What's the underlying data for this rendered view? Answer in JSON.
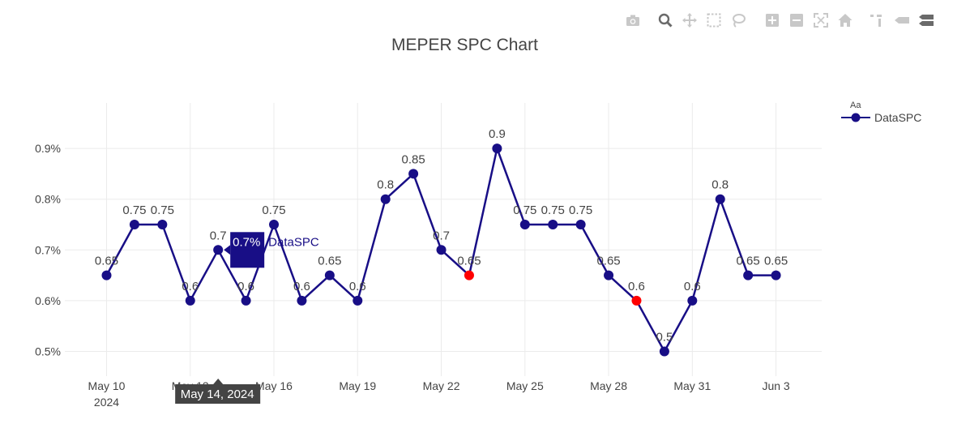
{
  "chart_data": {
    "type": "line",
    "title": "MEPER SPC Chart",
    "xlabel": "",
    "ylabel": "",
    "x_tick_labels": [
      "May 10",
      "May 13",
      "May 16",
      "May 19",
      "May 22",
      "May 25",
      "May 28",
      "May 31",
      "Jun 3"
    ],
    "x_tick_sublabel": "2024",
    "y_tick_labels": [
      "0.5%",
      "0.6%",
      "0.7%",
      "0.8%",
      "0.9%"
    ],
    "ylim": [
      0.45,
      0.99
    ],
    "grid": true,
    "legend": {
      "title": "Aa",
      "placement": "top-right"
    },
    "series": [
      {
        "name": "DataSPC",
        "color": "#180e86",
        "x": [
          "2024-05-10",
          "2024-05-11",
          "2024-05-12",
          "2024-05-13",
          "2024-05-14",
          "2024-05-15",
          "2024-05-16",
          "2024-05-17",
          "2024-05-18",
          "2024-05-19",
          "2024-05-20",
          "2024-05-21",
          "2024-05-22",
          "2024-05-23",
          "2024-05-24",
          "2024-05-25",
          "2024-05-26",
          "2024-05-27",
          "2024-05-28",
          "2024-05-29",
          "2024-05-30",
          "2024-05-31",
          "2024-06-01",
          "2024-06-02",
          "2024-06-03"
        ],
        "values": [
          0.65,
          0.75,
          0.75,
          0.6,
          0.7,
          0.6,
          0.75,
          0.6,
          0.65,
          0.6,
          0.8,
          0.85,
          0.7,
          0.65,
          0.9,
          0.75,
          0.75,
          0.75,
          0.65,
          0.6,
          0.5,
          0.6,
          0.8,
          0.65,
          0.65
        ],
        "labels": [
          "0.65",
          "0.75",
          "0.75",
          "0.6",
          "0.7",
          "0.6",
          "0.75",
          "0.6",
          "0.65",
          "0.6",
          "0.8",
          "0.85",
          "0.7",
          "0.65",
          "0.9",
          "0.75",
          "0.75",
          "0.75",
          "0.65",
          "0.6",
          "0.5",
          "0.6",
          "0.8",
          "0.65",
          "0.65"
        ],
        "out_of_control": [
          "2024-05-23",
          "2024-05-29"
        ],
        "out_of_control_color": "#ff0000"
      }
    ],
    "hover": {
      "x": "2024-05-14",
      "x_label": "May 14, 2024",
      "y_label": "0.7%",
      "series": "DataSPC"
    }
  },
  "toolbar": [
    {
      "name": "camera-icon",
      "active": false
    },
    {
      "name": "zoom-icon",
      "active": true
    },
    {
      "name": "pan-icon",
      "active": false
    },
    {
      "name": "box-select-icon",
      "active": false
    },
    {
      "name": "lasso-select-icon",
      "active": false
    },
    {
      "name": "zoom-in-icon",
      "active": false
    },
    {
      "name": "zoom-out-icon",
      "active": false
    },
    {
      "name": "autoscale-icon",
      "active": false
    },
    {
      "name": "reset-axes-icon",
      "active": false
    },
    {
      "name": "spike-lines-icon",
      "active": false
    },
    {
      "name": "hover-closest-icon",
      "active": false
    },
    {
      "name": "hover-compare-icon",
      "active": false
    }
  ]
}
